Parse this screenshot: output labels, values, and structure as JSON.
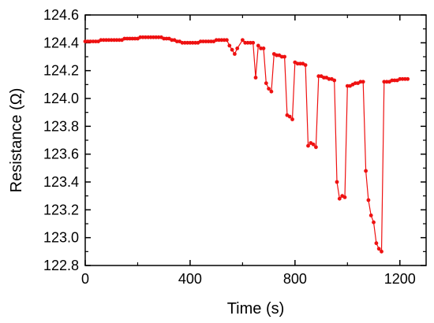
{
  "chart_data": {
    "type": "line",
    "xlabel": "Time (s)",
    "ylabel": "Resistance (Ω)",
    "xlim": [
      0,
      1300
    ],
    "ylim": [
      122.8,
      124.6
    ],
    "x_ticks": [
      0,
      400,
      800,
      1200
    ],
    "x_tick_labels": [
      "0",
      "400",
      "800",
      "1200"
    ],
    "y_ticks": [
      122.8,
      123.0,
      123.2,
      123.4,
      123.6,
      123.8,
      124.0,
      124.2,
      124.4,
      124.6
    ],
    "y_tick_labels": [
      "122.8",
      "123.0",
      "123.2",
      "123.4",
      "123.6",
      "123.8",
      "124.0",
      "124.2",
      "124.4",
      "124.6"
    ],
    "grid": false,
    "legend": "none",
    "series_color": "#ee1111",
    "series": [
      {
        "x": [
          0,
          10,
          20,
          30,
          40,
          50,
          60,
          70,
          80,
          90,
          100,
          110,
          120,
          130,
          140,
          150,
          160,
          170,
          180,
          190,
          200,
          210,
          220,
          230,
          240,
          250,
          260,
          270,
          280,
          290,
          300,
          310,
          320,
          330,
          340,
          350,
          360,
          370,
          380,
          390,
          400,
          410,
          420,
          430,
          440,
          450,
          460,
          470,
          480,
          490,
          500,
          510,
          520,
          530,
          540,
          550,
          560,
          570,
          580,
          600,
          610,
          620,
          630,
          640,
          650,
          660,
          670,
          680,
          690,
          700,
          710,
          720,
          730,
          740,
          750,
          760,
          770,
          780,
          790,
          800,
          810,
          820,
          830,
          840,
          850,
          860,
          870,
          880,
          890,
          900,
          910,
          920,
          930,
          940,
          950,
          960,
          970,
          980,
          990,
          1000,
          1010,
          1020,
          1030,
          1040,
          1050,
          1060,
          1070,
          1080,
          1090,
          1100,
          1110,
          1120,
          1130,
          1140,
          1150,
          1160,
          1170,
          1180,
          1190,
          1200,
          1210,
          1220,
          1230
        ],
        "y": [
          124.41,
          124.41,
          124.41,
          124.41,
          124.41,
          124.41,
          124.42,
          124.42,
          124.42,
          124.42,
          124.42,
          124.42,
          124.42,
          124.42,
          124.42,
          124.43,
          124.43,
          124.43,
          124.43,
          124.43,
          124.43,
          124.44,
          124.44,
          124.44,
          124.44,
          124.44,
          124.44,
          124.44,
          124.44,
          124.44,
          124.43,
          124.43,
          124.43,
          124.42,
          124.42,
          124.41,
          124.41,
          124.4,
          124.4,
          124.4,
          124.4,
          124.4,
          124.4,
          124.4,
          124.41,
          124.41,
          124.41,
          124.41,
          124.41,
          124.41,
          124.42,
          124.42,
          124.42,
          124.42,
          124.42,
          124.38,
          124.35,
          124.32,
          124.36,
          124.42,
          124.4,
          124.4,
          124.4,
          124.4,
          124.15,
          124.38,
          124.36,
          124.36,
          124.11,
          124.07,
          124.05,
          124.32,
          124.31,
          124.31,
          124.3,
          124.3,
          123.88,
          123.87,
          123.85,
          124.26,
          124.25,
          124.25,
          124.25,
          124.24,
          123.66,
          123.68,
          123.67,
          123.65,
          124.16,
          124.16,
          124.15,
          124.15,
          124.14,
          124.14,
          124.13,
          123.4,
          123.28,
          123.3,
          123.29,
          124.09,
          124.09,
          124.1,
          124.11,
          124.11,
          124.12,
          124.12,
          123.48,
          123.27,
          123.16,
          123.11,
          122.96,
          122.92,
          122.9,
          124.12,
          124.12,
          124.12,
          124.13,
          124.13,
          124.13,
          124.14,
          124.14,
          124.14,
          124.14
        ]
      }
    ]
  }
}
